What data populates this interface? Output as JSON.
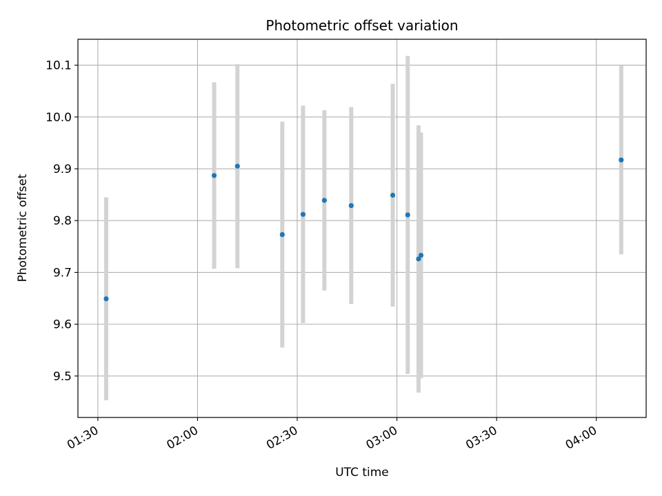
{
  "chart_data": {
    "type": "scatter",
    "title": "Photometric offset variation",
    "xlabel": "UTC time",
    "ylabel": "Photometric offset",
    "x_tick_labels": [
      "01:30",
      "02:00",
      "02:30",
      "03:00",
      "03:30",
      "04:00"
    ],
    "y_tick_labels": [
      "9.5",
      "9.6",
      "9.7",
      "9.8",
      "9.9",
      "10.0",
      "10.1"
    ],
    "x_ticks": [
      "01:30",
      "02:00",
      "02:30",
      "03:00",
      "03:30",
      "04:00"
    ],
    "y_ticks": [
      9.5,
      9.6,
      9.7,
      9.8,
      9.9,
      10.0,
      10.1
    ],
    "xlim": [
      "01:24",
      "04:15"
    ],
    "ylim": [
      9.42,
      10.15
    ],
    "grid": true,
    "colors": {
      "point": "#1f77b4",
      "errorbar": "#d3d3d3",
      "grid": "#b0b0b0"
    },
    "points": [
      {
        "x": "01:32:30",
        "y": 9.649,
        "err": 0.196
      },
      {
        "x": "02:05:00",
        "y": 9.887,
        "err": 0.18
      },
      {
        "x": "02:12:00",
        "y": 9.905,
        "err": 0.197
      },
      {
        "x": "02:25:30",
        "y": 9.773,
        "err": 0.218
      },
      {
        "x": "02:31:45",
        "y": 9.812,
        "err": 0.21
      },
      {
        "x": "02:38:10",
        "y": 9.839,
        "err": 0.174
      },
      {
        "x": "02:46:15",
        "y": 9.829,
        "err": 0.19
      },
      {
        "x": "02:58:45",
        "y": 9.849,
        "err": 0.215
      },
      {
        "x": "03:03:15",
        "y": 9.811,
        "err": 0.307
      },
      {
        "x": "03:06:30",
        "y": 9.726,
        "err": 0.258
      },
      {
        "x": "03:07:15",
        "y": 9.733,
        "err": 0.237
      },
      {
        "x": "04:07:30",
        "y": 9.917,
        "err": 0.182
      }
    ]
  }
}
